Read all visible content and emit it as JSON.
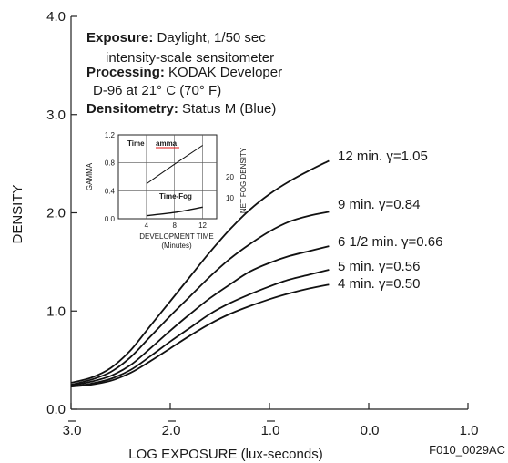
{
  "chart_data": {
    "type": "line",
    "xlabel": "LOG EXPOSURE (lux-seconds)",
    "ylabel": "DENSITY",
    "x_ticks": [
      {
        "value": -3.0,
        "label": "3.0",
        "bar": true
      },
      {
        "value": -2.0,
        "label": "2.0",
        "bar": true
      },
      {
        "value": -1.0,
        "label": "1.0",
        "bar": true
      },
      {
        "value": 0.0,
        "label": "0.0",
        "bar": false
      },
      {
        "value": 1.0,
        "label": "1.0",
        "bar": false
      }
    ],
    "y_ticks": [
      {
        "value": 0.0,
        "label": "0.0"
      },
      {
        "value": 1.0,
        "label": "1.0"
      },
      {
        "value": 2.0,
        "label": "2.0"
      },
      {
        "value": 3.0,
        "label": "3.0"
      },
      {
        "value": 4.0,
        "label": "4.0"
      }
    ],
    "xlim": [
      -3.0,
      1.0
    ],
    "ylim": [
      0.0,
      4.0
    ],
    "grid": false,
    "notes": [
      {
        "bold": "Exposure:",
        "text": " Daylight, 1/50 sec"
      },
      {
        "bold": "",
        "text": "intensity-scale sensitometer"
      },
      {
        "bold": "Processing:",
        "text": " KODAK Developer"
      },
      {
        "bold": "",
        "text": "D-96 at 21° C (70° F)"
      },
      {
        "bold": "Densitometry:",
        "text": " Status M (Blue)"
      }
    ],
    "series": [
      {
        "label": "12 min. γ=1.05",
        "x": [
          -3.0,
          -2.8,
          -2.6,
          -2.4,
          -2.2,
          -2.0,
          -1.8,
          -1.6,
          -1.4,
          -1.2,
          -1.0,
          -0.8,
          -0.6,
          -0.4
        ],
        "y": [
          0.27,
          0.32,
          0.42,
          0.6,
          0.85,
          1.1,
          1.35,
          1.6,
          1.83,
          2.03,
          2.19,
          2.32,
          2.43,
          2.53
        ]
      },
      {
        "label": "9 min. γ=0.84",
        "x": [
          -3.0,
          -2.8,
          -2.6,
          -2.4,
          -2.2,
          -2.0,
          -1.8,
          -1.6,
          -1.4,
          -1.2,
          -1.0,
          -0.8,
          -0.6,
          -0.4
        ],
        "y": [
          0.25,
          0.3,
          0.38,
          0.53,
          0.74,
          0.95,
          1.15,
          1.35,
          1.53,
          1.68,
          1.81,
          1.91,
          1.97,
          2.01
        ]
      },
      {
        "label": "6 1/2 min. γ=0.66",
        "x": [
          -3.0,
          -2.8,
          -2.6,
          -2.4,
          -2.2,
          -2.0,
          -1.8,
          -1.6,
          -1.4,
          -1.2,
          -1.0,
          -0.8,
          -0.6,
          -0.4
        ],
        "y": [
          0.24,
          0.28,
          0.34,
          0.45,
          0.62,
          0.8,
          0.97,
          1.13,
          1.27,
          1.4,
          1.49,
          1.56,
          1.61,
          1.66
        ]
      },
      {
        "label": "5 min. γ=0.56",
        "x": [
          -3.0,
          -2.8,
          -2.6,
          -2.4,
          -2.2,
          -2.0,
          -1.8,
          -1.6,
          -1.4,
          -1.2,
          -1.0,
          -0.8,
          -0.6,
          -0.4
        ],
        "y": [
          0.23,
          0.26,
          0.31,
          0.4,
          0.54,
          0.69,
          0.83,
          0.97,
          1.08,
          1.17,
          1.25,
          1.32,
          1.37,
          1.42
        ]
      },
      {
        "label": "4 min. γ=0.50",
        "x": [
          -3.0,
          -2.8,
          -2.6,
          -2.4,
          -2.2,
          -2.0,
          -1.8,
          -1.6,
          -1.4,
          -1.2,
          -1.0,
          -0.8,
          -0.6,
          -0.4
        ],
        "y": [
          0.23,
          0.25,
          0.29,
          0.37,
          0.49,
          0.62,
          0.75,
          0.87,
          0.97,
          1.05,
          1.12,
          1.18,
          1.23,
          1.27
        ]
      }
    ],
    "inset": {
      "xlabel": "DEVELOPMENT TIME",
      "xlabel2": "(Minutes)",
      "ylabel_left": "GAMMA",
      "ylabel_right": "NET FOG DENSITY",
      "x_ticks": [
        {
          "value": 4,
          "label": "4"
        },
        {
          "value": 8,
          "label": "8"
        },
        {
          "value": 12,
          "label": "12"
        }
      ],
      "y_ticks_left": [
        {
          "value": 0.0,
          "label": "0.0"
        },
        {
          "value": 0.4,
          "label": "0.4"
        },
        {
          "value": 0.8,
          "label": "0.8"
        },
        {
          "value": 1.2,
          "label": "1.2"
        }
      ],
      "y_ticks_right": [
        {
          "value": 10,
          "label": "10"
        },
        {
          "value": 20,
          "label": "20"
        }
      ],
      "xlim": [
        0,
        14
      ],
      "ylim_left": [
        0.0,
        1.2
      ],
      "ylim_right": [
        0,
        40
      ],
      "label_time_gamma_a": "Time",
      "label_time_gamma_b": "amma",
      "label_time_fog": "Time-Fog",
      "gamma_curve": {
        "x": [
          4,
          8,
          12
        ],
        "y": [
          0.5,
          0.78,
          1.05
        ]
      },
      "fog_curve": {
        "x": [
          4,
          8,
          12
        ],
        "y": [
          1.5,
          3.0,
          5.5
        ]
      }
    },
    "figure_code": "F010_0029AC"
  }
}
